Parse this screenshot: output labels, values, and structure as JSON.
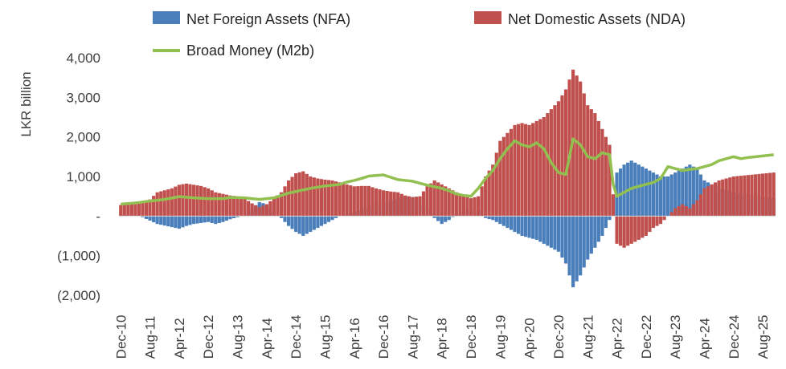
{
  "chart_data": {
    "type": "bar+line",
    "title": "",
    "ylabel": "LKR billion",
    "xlabel": "",
    "ylim": [
      -2000,
      4000
    ],
    "yticks": [
      {
        "value": 4000,
        "label": "4,000"
      },
      {
        "value": 3000,
        "label": "3,000"
      },
      {
        "value": 2000,
        "label": "2,000"
      },
      {
        "value": 1000,
        "label": "1,000"
      },
      {
        "value": 0,
        "label": "-"
      },
      {
        "value": -1000,
        "label": "(1,000)"
      },
      {
        "value": -2000,
        "label": "(2,000)"
      }
    ],
    "xticks": [
      "Dec-10",
      "Aug-11",
      "Apr-12",
      "Dec-12",
      "Aug-13",
      "Apr-14",
      "Dec-14",
      "Aug-15",
      "Apr-16",
      "Dec-16",
      "Aug-17",
      "Apr-18",
      "Dec-18",
      "Aug-19",
      "Apr-20",
      "Dec-20",
      "Aug-21",
      "Apr-22",
      "Dec-22",
      "Aug-23",
      "Apr-24",
      "Dec-24",
      "Aug-25"
    ],
    "period_start": "Dec-10",
    "period_end": "Nov-25",
    "frequency": "monthly",
    "legend": [
      {
        "name": "Net Foreign Assets (NFA)",
        "color": "#4a7ebb",
        "kind": "bar"
      },
      {
        "name": "Net Domestic Assets  (NDA)",
        "color": "#c0504d",
        "kind": "bar"
      },
      {
        "name": "Broad Money (M2b)",
        "color": "#92c050",
        "kind": "line"
      }
    ],
    "series_keypoints_note": "Monthly values in LKR billion, keyed by month index (0 = Dec-10, 8 = Aug-11, ...). Values between keypoints are linearly interpolated.",
    "series": [
      {
        "name": "Net Foreign Assets (NFA)",
        "keypoints": [
          [
            0,
            30
          ],
          [
            4,
            20
          ],
          [
            6,
            -30
          ],
          [
            10,
            -200
          ],
          [
            14,
            -280
          ],
          [
            16,
            -320
          ],
          [
            18,
            -250
          ],
          [
            20,
            -200
          ],
          [
            24,
            -150
          ],
          [
            26,
            -200
          ],
          [
            28,
            -150
          ],
          [
            30,
            -80
          ],
          [
            32,
            -30
          ],
          [
            34,
            50
          ],
          [
            36,
            200
          ],
          [
            38,
            350
          ],
          [
            40,
            300
          ],
          [
            42,
            100
          ],
          [
            44,
            -50
          ],
          [
            46,
            -250
          ],
          [
            48,
            -400
          ],
          [
            50,
            -500
          ],
          [
            52,
            -400
          ],
          [
            54,
            -300
          ],
          [
            56,
            -200
          ],
          [
            58,
            -100
          ],
          [
            60,
            0
          ],
          [
            62,
            50
          ],
          [
            64,
            100
          ],
          [
            66,
            150
          ],
          [
            68,
            200
          ],
          [
            70,
            300
          ],
          [
            72,
            350
          ],
          [
            74,
            400
          ],
          [
            76,
            450
          ],
          [
            78,
            500
          ],
          [
            80,
            480
          ],
          [
            82,
            450
          ],
          [
            84,
            200
          ],
          [
            86,
            -50
          ],
          [
            88,
            -200
          ],
          [
            90,
            -100
          ],
          [
            92,
            50
          ],
          [
            94,
            100
          ],
          [
            96,
            150
          ],
          [
            98,
            150
          ],
          [
            100,
            -50
          ],
          [
            102,
            -100
          ],
          [
            104,
            -200
          ],
          [
            106,
            -300
          ],
          [
            108,
            -400
          ],
          [
            110,
            -500
          ],
          [
            112,
            -550
          ],
          [
            114,
            -600
          ],
          [
            116,
            -700
          ],
          [
            118,
            -800
          ],
          [
            120,
            -900
          ],
          [
            122,
            -1200
          ],
          [
            124,
            -1800
          ],
          [
            126,
            -1500
          ],
          [
            128,
            -1100
          ],
          [
            130,
            -800
          ],
          [
            132,
            -500
          ],
          [
            134,
            -100
          ],
          [
            136,
            1100
          ],
          [
            138,
            1300
          ],
          [
            140,
            1400
          ],
          [
            142,
            1300
          ],
          [
            144,
            1200
          ],
          [
            146,
            1100
          ],
          [
            148,
            1000
          ],
          [
            150,
            1000
          ],
          [
            152,
            1100
          ],
          [
            154,
            1200
          ],
          [
            156,
            1300
          ],
          [
            158,
            1200
          ],
          [
            160,
            900
          ],
          [
            162,
            800
          ],
          [
            164,
            700
          ],
          [
            166,
            650
          ],
          [
            168,
            600
          ],
          [
            179,
            450
          ]
        ]
      },
      {
        "name": "Net Domestic Assets  (NDA)",
        "keypoints": [
          [
            0,
            280
          ],
          [
            4,
            330
          ],
          [
            8,
            420
          ],
          [
            10,
            600
          ],
          [
            14,
            700
          ],
          [
            16,
            790
          ],
          [
            18,
            820
          ],
          [
            22,
            760
          ],
          [
            24,
            700
          ],
          [
            26,
            600
          ],
          [
            28,
            560
          ],
          [
            30,
            520
          ],
          [
            32,
            500
          ],
          [
            34,
            440
          ],
          [
            36,
            320
          ],
          [
            38,
            220
          ],
          [
            40,
            300
          ],
          [
            42,
            450
          ],
          [
            44,
            600
          ],
          [
            46,
            900
          ],
          [
            48,
            1080
          ],
          [
            50,
            1130
          ],
          [
            52,
            1000
          ],
          [
            54,
            950
          ],
          [
            56,
            920
          ],
          [
            58,
            900
          ],
          [
            60,
            850
          ],
          [
            62,
            800
          ],
          [
            64,
            750
          ],
          [
            66,
            760
          ],
          [
            68,
            760
          ],
          [
            70,
            700
          ],
          [
            72,
            650
          ],
          [
            74,
            620
          ],
          [
            76,
            600
          ],
          [
            78,
            520
          ],
          [
            80,
            480
          ],
          [
            82,
            500
          ],
          [
            84,
            750
          ],
          [
            86,
            900
          ],
          [
            88,
            800
          ],
          [
            90,
            700
          ],
          [
            92,
            600
          ],
          [
            94,
            500
          ],
          [
            96,
            450
          ],
          [
            98,
            500
          ],
          [
            100,
            1000
          ],
          [
            102,
            1300
          ],
          [
            104,
            1900
          ],
          [
            106,
            2100
          ],
          [
            108,
            2300
          ],
          [
            110,
            2350
          ],
          [
            112,
            2300
          ],
          [
            114,
            2400
          ],
          [
            116,
            2500
          ],
          [
            118,
            2700
          ],
          [
            120,
            2900
          ],
          [
            122,
            3200
          ],
          [
            124,
            3700
          ],
          [
            126,
            3400
          ],
          [
            128,
            2800
          ],
          [
            130,
            2600
          ],
          [
            132,
            2200
          ],
          [
            134,
            1800
          ],
          [
            136,
            -700
          ],
          [
            138,
            -800
          ],
          [
            140,
            -700
          ],
          [
            142,
            -600
          ],
          [
            144,
            -500
          ],
          [
            146,
            -300
          ],
          [
            148,
            -200
          ],
          [
            150,
            0
          ],
          [
            152,
            200
          ],
          [
            154,
            300
          ],
          [
            156,
            200
          ],
          [
            158,
            400
          ],
          [
            160,
            700
          ],
          [
            162,
            800
          ],
          [
            164,
            900
          ],
          [
            166,
            950
          ],
          [
            168,
            1000
          ],
          [
            179,
            1100
          ]
        ]
      },
      {
        "name": "Broad Money (M2b)",
        "keypoints": [
          [
            0,
            300
          ],
          [
            4,
            330
          ],
          [
            8,
            380
          ],
          [
            12,
            420
          ],
          [
            16,
            490
          ],
          [
            20,
            460
          ],
          [
            24,
            440
          ],
          [
            28,
            440
          ],
          [
            30,
            470
          ],
          [
            34,
            460
          ],
          [
            38,
            420
          ],
          [
            40,
            440
          ],
          [
            42,
            460
          ],
          [
            44,
            520
          ],
          [
            46,
            580
          ],
          [
            48,
            620
          ],
          [
            52,
            700
          ],
          [
            56,
            760
          ],
          [
            60,
            800
          ],
          [
            62,
            860
          ],
          [
            64,
            900
          ],
          [
            66,
            950
          ],
          [
            68,
            1010
          ],
          [
            72,
            1040
          ],
          [
            74,
            980
          ],
          [
            76,
            920
          ],
          [
            80,
            880
          ],
          [
            84,
            780
          ],
          [
            88,
            700
          ],
          [
            90,
            640
          ],
          [
            92,
            560
          ],
          [
            94,
            520
          ],
          [
            96,
            500
          ],
          [
            98,
            700
          ],
          [
            100,
            950
          ],
          [
            102,
            1150
          ],
          [
            104,
            1450
          ],
          [
            106,
            1700
          ],
          [
            108,
            1900
          ],
          [
            110,
            1800
          ],
          [
            112,
            1750
          ],
          [
            114,
            1850
          ],
          [
            116,
            1700
          ],
          [
            118,
            1350
          ],
          [
            120,
            1100
          ],
          [
            122,
            1050
          ],
          [
            124,
            1950
          ],
          [
            126,
            1800
          ],
          [
            128,
            1500
          ],
          [
            130,
            1450
          ],
          [
            132,
            1600
          ],
          [
            134,
            1550
          ],
          [
            135,
            800
          ],
          [
            136,
            500
          ],
          [
            138,
            600
          ],
          [
            140,
            700
          ],
          [
            142,
            750
          ],
          [
            144,
            800
          ],
          [
            146,
            850
          ],
          [
            148,
            950
          ],
          [
            150,
            1250
          ],
          [
            152,
            1200
          ],
          [
            154,
            1150
          ],
          [
            156,
            1180
          ],
          [
            158,
            1200
          ],
          [
            160,
            1250
          ],
          [
            162,
            1300
          ],
          [
            164,
            1400
          ],
          [
            166,
            1450
          ],
          [
            168,
            1500
          ],
          [
            170,
            1450
          ],
          [
            172,
            1480
          ],
          [
            174,
            1500
          ],
          [
            176,
            1520
          ],
          [
            179,
            1550
          ]
        ]
      }
    ]
  }
}
